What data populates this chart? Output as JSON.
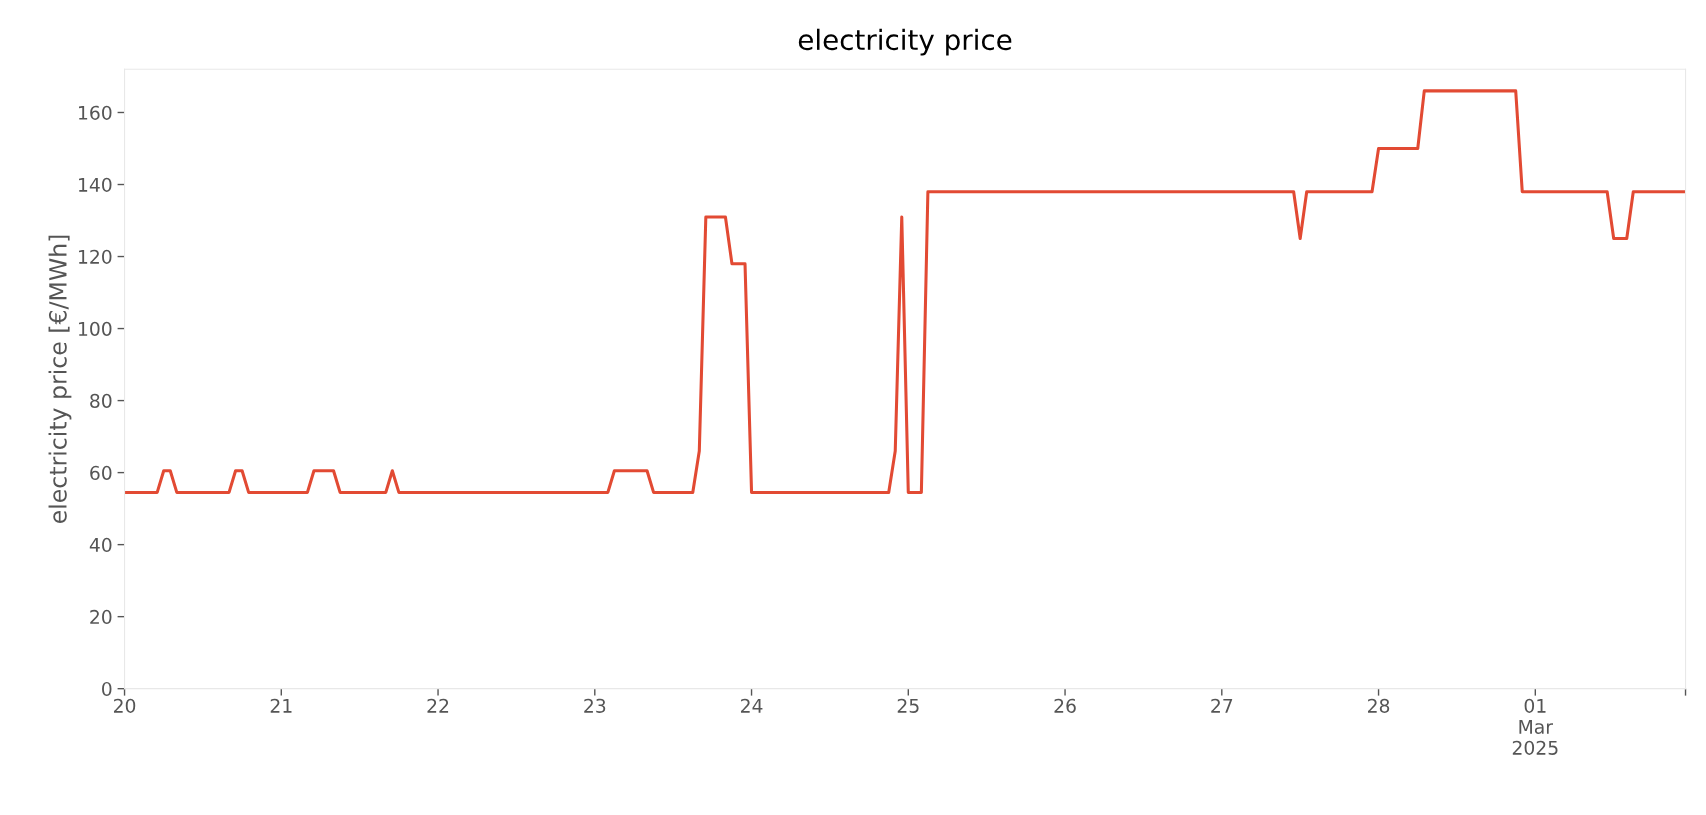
{
  "chart_data": {
    "type": "line",
    "title": "electricity price",
    "ylabel": "electricity price [€/MWh]",
    "x": [
      "2025-02-20T00:00",
      "2025-02-20T05:00",
      "2025-02-20T06:00",
      "2025-02-20T07:00",
      "2025-02-20T08:00",
      "2025-02-20T16:00",
      "2025-02-20T17:00",
      "2025-02-20T18:00",
      "2025-02-20T19:00",
      "2025-02-21T04:00",
      "2025-02-21T05:00",
      "2025-02-21T08:00",
      "2025-02-21T09:00",
      "2025-02-21T16:00",
      "2025-02-21T17:00",
      "2025-02-21T18:00",
      "2025-02-23T02:00",
      "2025-02-23T03:00",
      "2025-02-23T08:00",
      "2025-02-23T09:00",
      "2025-02-23T15:00",
      "2025-02-23T16:00",
      "2025-02-23T17:00",
      "2025-02-23T20:00",
      "2025-02-23T21:00",
      "2025-02-23T23:00",
      "2025-02-24T00:00",
      "2025-02-24T21:00",
      "2025-02-24T22:00",
      "2025-02-24T23:00",
      "2025-02-25T00:00",
      "2025-02-25T02:00",
      "2025-02-25T03:00",
      "2025-02-27T11:00",
      "2025-02-27T12:00",
      "2025-02-27T13:00",
      "2025-02-27T23:00",
      "2025-02-28T00:00",
      "2025-02-28T06:00",
      "2025-02-28T07:00",
      "2025-02-28T21:00",
      "2025-02-28T22:00",
      "2025-03-01T11:00",
      "2025-03-01T12:00",
      "2025-03-01T14:00",
      "2025-03-01T15:00",
      "2025-03-01T23:00"
    ],
    "series": [
      {
        "color": "#e24a33",
        "values": [
          54.5,
          54.5,
          60.5,
          60.5,
          54.5,
          54.5,
          60.5,
          60.5,
          54.5,
          54.5,
          60.5,
          60.5,
          54.5,
          54.5,
          60.5,
          54.5,
          54.5,
          60.5,
          60.5,
          54.5,
          54.5,
          66,
          131,
          131,
          118,
          118,
          54.5,
          54.5,
          66,
          131,
          54.5,
          54.5,
          138,
          138,
          125,
          138,
          138,
          150,
          150,
          166,
          166,
          138,
          138,
          125,
          125,
          138,
          138
        ]
      }
    ],
    "xlim": [
      "2025-02-20T00:00",
      "2025-03-01T23:00"
    ],
    "xticks": [
      {
        "value": "2025-02-20",
        "label": "20"
      },
      {
        "value": "2025-02-21",
        "label": "21"
      },
      {
        "value": "2025-02-22",
        "label": "22"
      },
      {
        "value": "2025-02-23",
        "label": "23"
      },
      {
        "value": "2025-02-24",
        "label": "24"
      },
      {
        "value": "2025-02-25",
        "label": "25"
      },
      {
        "value": "2025-02-26",
        "label": "26"
      },
      {
        "value": "2025-02-27",
        "label": "27"
      },
      {
        "value": "2025-02-28",
        "label": "28"
      },
      {
        "value": "2025-03-01",
        "label": "01\nMar\n2025"
      },
      {
        "value": "2025-03-01T23:00",
        "label": null
      }
    ],
    "ylim": [
      0,
      172
    ],
    "yticks": [
      0,
      20,
      40,
      60,
      80,
      100,
      120,
      140,
      160
    ],
    "grid": false,
    "legend": false,
    "line_style": "solid",
    "marker": "none"
  }
}
